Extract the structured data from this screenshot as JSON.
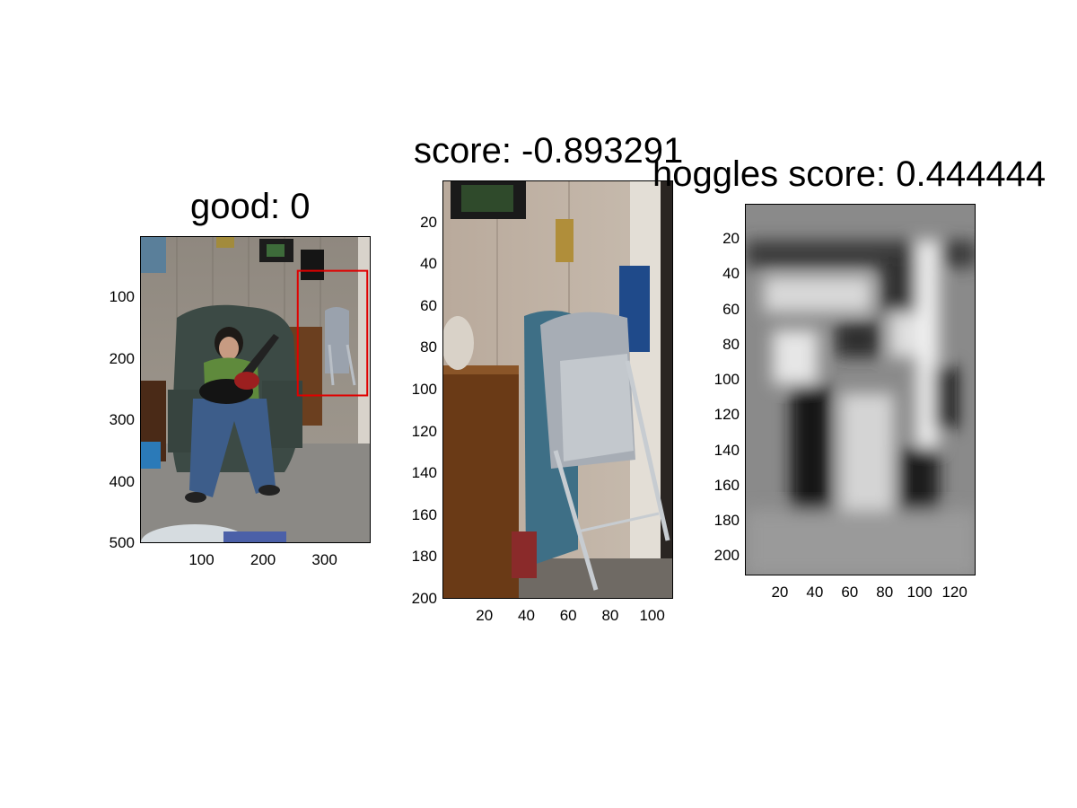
{
  "chart_data": [
    {
      "type": "image",
      "title": "good: 0",
      "image_description": "photo of a woman in a green recliner holding a guitar controller, with a folding chair highlighted by a red box",
      "x_ticks": [
        100,
        200,
        300
      ],
      "y_ticks": [
        100,
        200,
        300,
        400,
        500
      ],
      "xlim": [
        0,
        375
      ],
      "ylim": [
        0,
        500
      ],
      "detection_box": {
        "x1": 255,
        "y1": 55,
        "x2": 368,
        "y2": 258,
        "color": "#e00000"
      }
    },
    {
      "type": "image",
      "title": "score: -0.893291",
      "image_description": "cropped photo of a folded grey folding chair next to a wooden cabinet",
      "x_ticks": [
        20,
        40,
        60,
        80,
        100
      ],
      "y_ticks": [
        20,
        40,
        60,
        80,
        100,
        120,
        140,
        160,
        180,
        200
      ],
      "xlim": [
        0,
        110
      ],
      "ylim": [
        0,
        200
      ]
    },
    {
      "type": "heatmap",
      "title": "hoggles score: 0.444444",
      "colormap": "gray",
      "x_ticks": [
        20,
        40,
        60,
        80,
        100,
        120
      ],
      "y_ticks": [
        20,
        40,
        60,
        80,
        100,
        120,
        140,
        160,
        180,
        200
      ],
      "xlim": [
        0,
        132
      ],
      "ylim": [
        0,
        211
      ]
    }
  ]
}
